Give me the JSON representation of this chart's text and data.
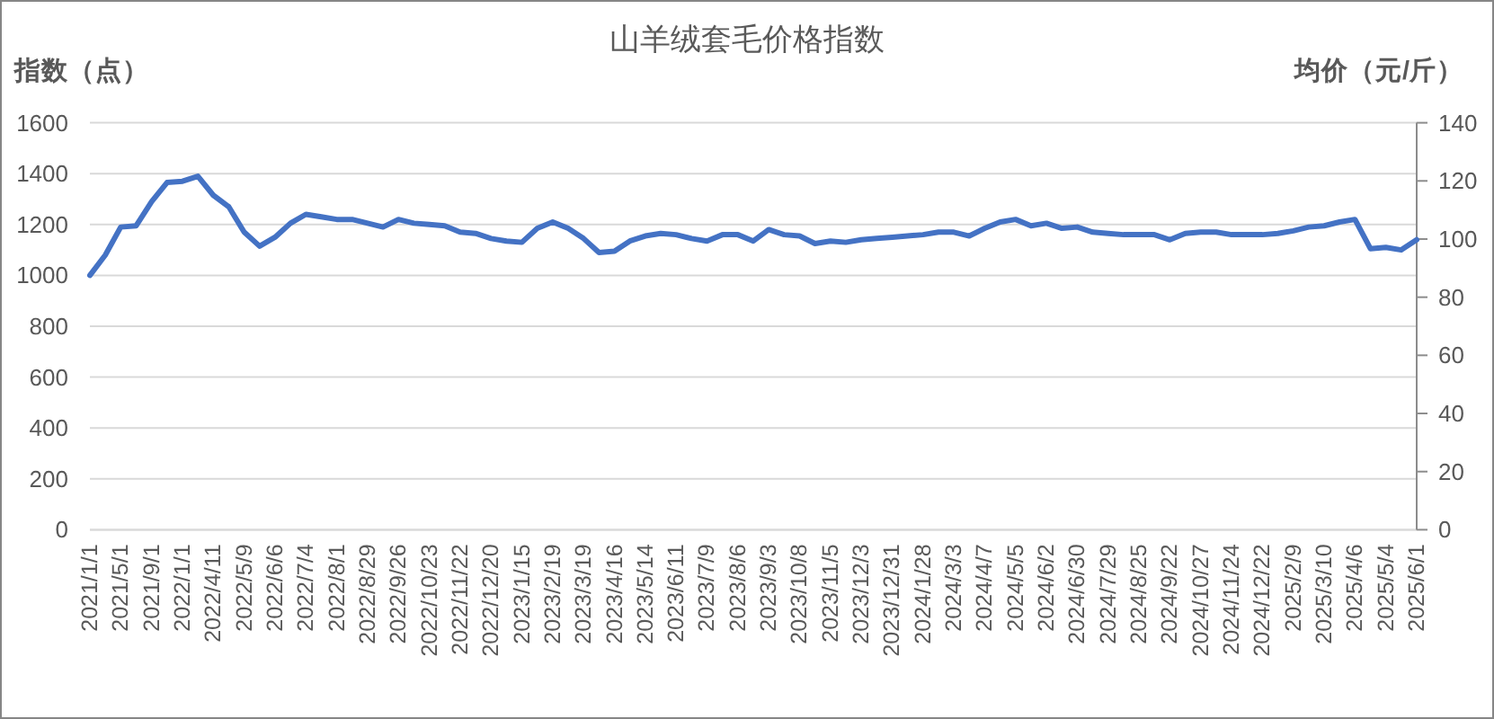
{
  "chart_data": {
    "type": "line",
    "title": "山羊绒套毛价格指数",
    "ylabel": "指数（点）",
    "y2label": "均价（元/斤）",
    "categories": [
      "2021/1/1",
      null,
      "2021/5/1",
      null,
      "2021/9/1",
      null,
      "2022/1/1",
      null,
      "2022/4/11",
      null,
      "2022/5/9",
      null,
      "2022/6/6",
      null,
      "2022/7/4",
      null,
      "2022/8/1",
      null,
      "2022/8/29",
      null,
      "2022/9/26",
      null,
      "2022/10/23",
      null,
      "2022/11/22",
      null,
      "2022/12/20",
      null,
      "2023/1/15",
      null,
      "2023/2/19",
      null,
      "2023/3/19",
      null,
      "2023/4/16",
      null,
      "2023/5/14",
      null,
      "2023/6/11",
      null,
      "2023/7/9",
      null,
      "2023/8/6",
      null,
      "2023/9/3",
      null,
      "2023/10/8",
      null,
      "2023/11/5",
      null,
      "2023/12/3",
      null,
      "2023/12/31",
      null,
      "2024/1/28",
      null,
      "2024/3/3",
      null,
      "2024/4/7",
      null,
      "2024/5/5",
      null,
      "2024/6/2",
      null,
      "2024/6/30",
      null,
      "2024/7/29",
      null,
      "2024/8/25",
      null,
      "2024/9/22",
      null,
      "2024/10/27",
      null,
      "2024/11/24",
      null,
      "2024/12/22",
      null,
      "2025/2/9",
      null,
      "2025/3/10",
      null,
      "2025/4/6",
      null,
      "2025/5/4",
      null,
      "2025/6/1"
    ],
    "series": [
      {
        "color": "#4472c4",
        "values": [
          1000,
          1080,
          1190,
          1195,
          1290,
          1365,
          1370,
          1390,
          1315,
          1270,
          1170,
          1115,
          1150,
          1205,
          1240,
          1230,
          1220,
          1220,
          1205,
          1190,
          1220,
          1205,
          1200,
          1195,
          1170,
          1165,
          1145,
          1135,
          1130,
          1185,
          1210,
          1185,
          1145,
          1090,
          1095,
          1135,
          1155,
          1165,
          1160,
          1145,
          1135,
          1160,
          1160,
          1135,
          1180,
          1160,
          1155,
          1125,
          1135,
          1130,
          1140,
          1145,
          1150,
          1155,
          1160,
          1170,
          1170,
          1155,
          1185,
          1210,
          1220,
          1195,
          1205,
          1185,
          1190,
          1170,
          1165,
          1160,
          1160,
          1160,
          1140,
          1165,
          1170,
          1170,
          1160,
          1160,
          1160,
          1165,
          1175,
          1190,
          1195,
          1210,
          1220,
          1105,
          1110,
          1100,
          1140
        ]
      }
    ],
    "ylim": [
      0,
      1600
    ],
    "yticks": [
      0,
      200,
      400,
      600,
      800,
      1000,
      1200,
      1400,
      1600
    ],
    "y2lim": [
      0,
      140
    ],
    "y2ticks": [
      0,
      20,
      40,
      60,
      80,
      100,
      120,
      140
    ],
    "grid": "y",
    "marker": "none",
    "line_style": "solid"
  }
}
